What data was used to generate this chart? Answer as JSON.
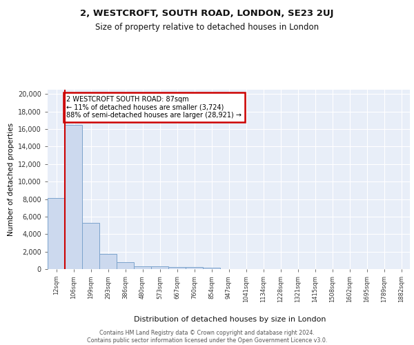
{
  "title": "2, WESTCROFT, SOUTH ROAD, LONDON, SE23 2UJ",
  "subtitle": "Size of property relative to detached houses in London",
  "xlabel": "Distribution of detached houses by size in London",
  "ylabel": "Number of detached properties",
  "categories": [
    "12sqm",
    "106sqm",
    "199sqm",
    "293sqm",
    "386sqm",
    "480sqm",
    "573sqm",
    "667sqm",
    "760sqm",
    "854sqm",
    "947sqm",
    "1041sqm",
    "1134sqm",
    "1228sqm",
    "1321sqm",
    "1415sqm",
    "1508sqm",
    "1602sqm",
    "1695sqm",
    "1789sqm",
    "1882sqm"
  ],
  "values": [
    8100,
    16500,
    5250,
    1750,
    750,
    350,
    280,
    230,
    210,
    150,
    0,
    0,
    0,
    0,
    0,
    0,
    0,
    0,
    0,
    0,
    0
  ],
  "bar_color": "#ccd9ee",
  "bar_edge_color": "#7ba3cc",
  "annotation_title": "2 WESTCROFT SOUTH ROAD: 87sqm",
  "annotation_line1": "← 11% of detached houses are smaller (3,724)",
  "annotation_line2": "88% of semi-detached houses are larger (28,921) →",
  "annotation_box_color": "#ffffff",
  "annotation_box_edge_color": "#cc0000",
  "red_line_color": "#cc0000",
  "bg_color": "#e8eef8",
  "grid_color": "#ffffff",
  "fig_bg_color": "#ffffff",
  "yticks": [
    0,
    2000,
    4000,
    6000,
    8000,
    10000,
    12000,
    14000,
    16000,
    18000,
    20000
  ],
  "ylim": [
    0,
    20500
  ],
  "footer": "Contains HM Land Registry data © Crown copyright and database right 2024.\nContains public sector information licensed under the Open Government Licence v3.0."
}
